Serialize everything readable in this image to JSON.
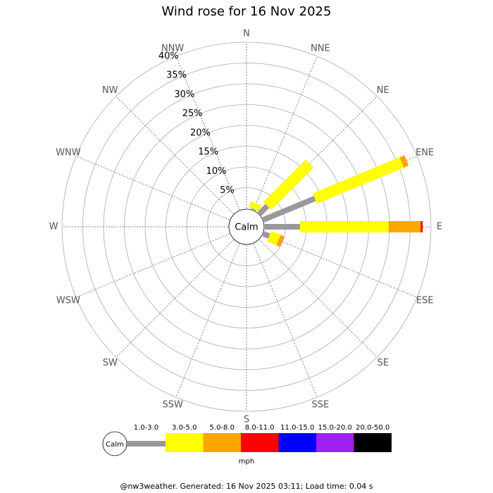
{
  "chart_data": {
    "type": "windrose",
    "title": "Wind rose for 16 Nov 2025",
    "directions": [
      "N",
      "NNE",
      "NE",
      "ENE",
      "E",
      "ESE",
      "SE",
      "SSE",
      "S",
      "SSW",
      "SW",
      "WSW",
      "W",
      "WNW",
      "NW",
      "NNW"
    ],
    "calm_label": "Calm",
    "ylim": [
      0,
      40
    ],
    "yticks": [
      {
        "value": 5,
        "label": "5%"
      },
      {
        "value": 10,
        "label": "10%"
      },
      {
        "value": 15,
        "label": "15%"
      },
      {
        "value": 20,
        "label": "20%"
      },
      {
        "value": 25,
        "label": "25%"
      },
      {
        "value": 30,
        "label": "30%"
      },
      {
        "value": 35,
        "label": "35%"
      },
      {
        "value": 40,
        "label": "40%"
      }
    ],
    "series": [
      {
        "name": "1.0-3.0",
        "color": "#999999",
        "values": [
          0,
          0.2,
          2.7,
          13.4,
          8.5,
          1.5,
          0,
          0,
          0,
          0,
          0,
          0,
          0,
          0,
          0,
          0
        ]
      },
      {
        "name": "3.0-5.0",
        "color": "#ffff00",
        "values": [
          0,
          1.5,
          14.4,
          22.6,
          21.3,
          2.4,
          0,
          0,
          0,
          0,
          0,
          0,
          0,
          0,
          0,
          0
        ]
      },
      {
        "name": "5.0-8.0",
        "color": "#ffa500",
        "values": [
          0,
          0,
          0,
          1.3,
          7.7,
          1.0,
          0,
          0,
          0,
          0,
          0,
          0,
          0,
          0,
          0,
          0
        ]
      },
      {
        "name": "8.0-11.0",
        "color": "#ff0000",
        "values": [
          0,
          0,
          0,
          0,
          0.5,
          0,
          0,
          0,
          0,
          0,
          0,
          0,
          0,
          0,
          0,
          0
        ]
      },
      {
        "name": "11.0-15.0",
        "color": "#0000ff",
        "values": [
          0,
          0,
          0,
          0,
          0,
          0,
          0,
          0,
          0,
          0,
          0,
          0,
          0,
          0,
          0,
          0
        ]
      },
      {
        "name": "15.0-20.0",
        "color": "#a020f0",
        "values": [
          0,
          0,
          0,
          0,
          0,
          0,
          0,
          0,
          0,
          0,
          0,
          0,
          0,
          0,
          0,
          0
        ]
      },
      {
        "name": "20.0-50.0",
        "color": "#000000",
        "values": [
          0,
          0,
          0,
          0,
          0,
          0,
          0,
          0,
          0,
          0,
          0,
          0,
          0,
          0,
          0,
          0
        ]
      }
    ],
    "unit_label": "mph",
    "footer": "@nw3weather. Generated: 16 Nov 2025 03:11; Load time: 0.04 s"
  }
}
